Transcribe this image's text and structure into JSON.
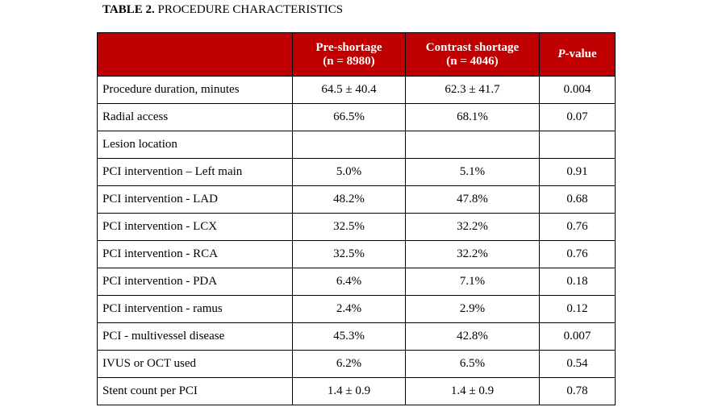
{
  "caption": {
    "label": "TABLE 2.",
    "title": "PROCEDURE CHARACTERISTICS"
  },
  "header": {
    "col0": "",
    "pre_shortage": {
      "line1": "Pre-shortage",
      "line2": "(n = 8980)"
    },
    "contrast_shortage": {
      "line1": "Contrast shortage",
      "line2": "(n = 4046)"
    },
    "p_value": {
      "italic": "P",
      "rest": "-value"
    }
  },
  "rows": [
    {
      "label": "Procedure duration, minutes",
      "pre": "64.5 ± 40.4",
      "contrast": "62.3 ± 41.7",
      "p": "0.004"
    },
    {
      "label": "Radial access",
      "pre": "66.5%",
      "contrast": "68.1%",
      "p": "0.07"
    },
    {
      "label": "Lesion location",
      "pre": "",
      "contrast": "",
      "p": ""
    },
    {
      "label": "PCI intervention – Left main",
      "pre": "5.0%",
      "contrast": "5.1%",
      "p": "0.91"
    },
    {
      "label": "PCI intervention - LAD",
      "pre": "48.2%",
      "contrast": "47.8%",
      "p": "0.68"
    },
    {
      "label": "PCI intervention - LCX",
      "pre": "32.5%",
      "contrast": "32.2%",
      "p": "0.76"
    },
    {
      "label": "PCI intervention - RCA",
      "pre": "32.5%",
      "contrast": "32.2%",
      "p": "0.76"
    },
    {
      "label": "PCI intervention - PDA",
      "pre": "6.4%",
      "contrast": "7.1%",
      "p": "0.18"
    },
    {
      "label": "PCI intervention - ramus",
      "pre": "2.4%",
      "contrast": "2.9%",
      "p": "0.12"
    },
    {
      "label": "PCI - multivessel disease",
      "pre": "45.3%",
      "contrast": "42.8%",
      "p": "0.007"
    },
    {
      "label": "IVUS or OCT used",
      "pre": "6.2%",
      "contrast": "6.5%",
      "p": "0.54"
    },
    {
      "label": "Stent count per PCI",
      "pre": "1.4 ± 0.9",
      "contrast": "1.4 ± 0.9",
      "p": "0.78"
    }
  ],
  "colors": {
    "header_background": "#c00000",
    "header_text": "#ffffff"
  }
}
